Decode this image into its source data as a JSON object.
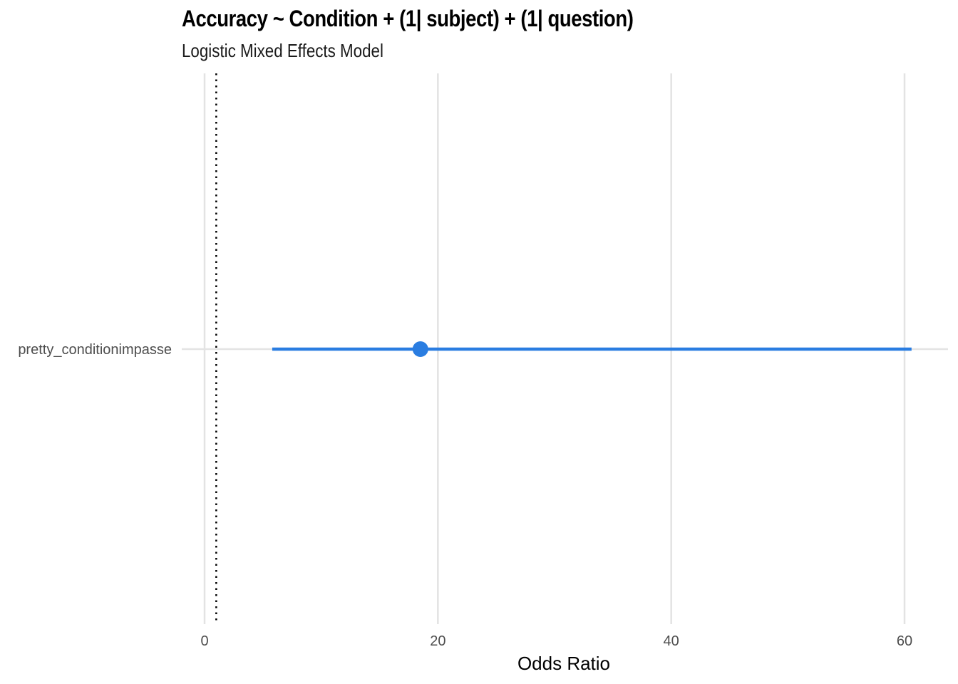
{
  "chart_data": {
    "type": "scatter",
    "title": "Accuracy ~ Condition + (1| subject) + (1| question)",
    "subtitle": "Logistic Mixed Effects Model",
    "xlabel": "Odds Ratio",
    "ylabel": "",
    "xlim": [
      -2,
      63
    ],
    "xticks": [
      0,
      20,
      40,
      60
    ],
    "reference_line": 1,
    "grid": true,
    "series": [
      {
        "terms": [
          "pretty_conditionimpasse"
        ],
        "estimate": [
          18.5
        ],
        "conf_low": [
          5.8
        ],
        "conf_high": [
          60.6
        ]
      }
    ],
    "colors": {
      "estimate": "#2a7de1",
      "grid": "#e3e3e3",
      "reference": "#000000"
    }
  }
}
